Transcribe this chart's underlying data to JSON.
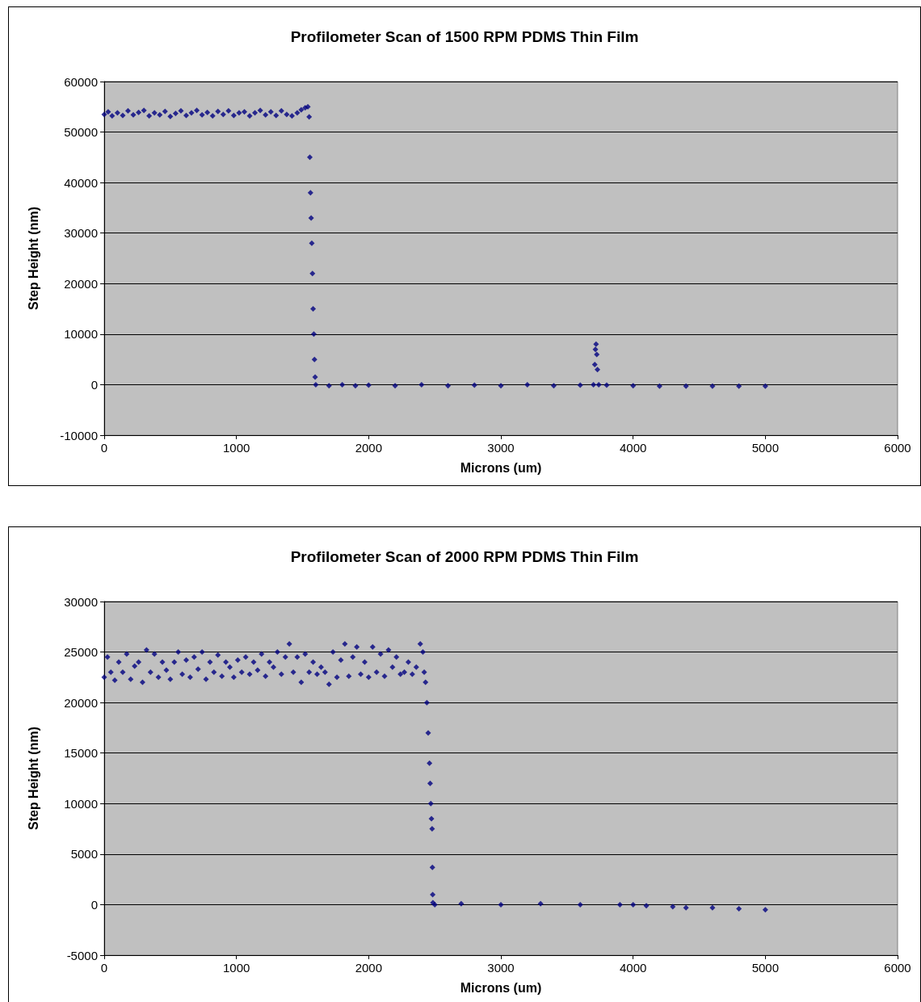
{
  "chart_data": [
    {
      "type": "scatter",
      "title": "Profilometer Scan of 1500 RPM PDMS Thin Film",
      "xlabel": "Microns (um)",
      "ylabel": "Step Height (nm)",
      "xlim": [
        0,
        6000
      ],
      "xticks": [
        0,
        1000,
        2000,
        3000,
        4000,
        5000,
        6000
      ],
      "ylim": [
        -10000,
        60000
      ],
      "yticks": [
        -10000,
        0,
        10000,
        20000,
        30000,
        40000,
        50000,
        60000
      ],
      "grid": "y",
      "marker": "diamond",
      "series": [
        {
          "color": "#000080",
          "x": [
            0,
            30,
            60,
            100,
            140,
            180,
            220,
            260,
            300,
            340,
            380,
            420,
            460,
            500,
            540,
            580,
            620,
            660,
            700,
            740,
            780,
            820,
            860,
            900,
            940,
            980,
            1020,
            1060,
            1100,
            1140,
            1180,
            1220,
            1260,
            1300,
            1340,
            1380,
            1420,
            1460,
            1490,
            1520,
            1540,
            1550,
            1555,
            1560,
            1565,
            1570,
            1575,
            1580,
            1585,
            1590,
            1595,
            1600,
            1700,
            1800,
            1900,
            2000,
            2200,
            2400,
            2600,
            2800,
            3000,
            3200,
            3400,
            3600,
            3700,
            3710,
            3715,
            3720,
            3725,
            3730,
            3740,
            3800,
            4000,
            4200,
            4400,
            4600,
            4800,
            5000
          ],
          "values": [
            53500,
            54000,
            53200,
            53800,
            53300,
            54200,
            53400,
            53900,
            54300,
            53200,
            53800,
            53400,
            54100,
            53100,
            53700,
            54200,
            53300,
            53800,
            54300,
            53400,
            53900,
            53200,
            54100,
            53500,
            54200,
            53300,
            53800,
            54000,
            53200,
            53800,
            54300,
            53400,
            54000,
            53300,
            54200,
            53500,
            53200,
            53800,
            54400,
            54800,
            55000,
            53000,
            45000,
            38000,
            33000,
            28000,
            22000,
            15000,
            10000,
            5000,
            1500,
            0,
            -200,
            0,
            -200,
            -100,
            -200,
            0,
            -200,
            -100,
            -200,
            0,
            -200,
            -100,
            0,
            4000,
            7000,
            8000,
            6000,
            3000,
            0,
            -100,
            -200,
            -300,
            -300,
            -300,
            -300,
            -300
          ]
        }
      ]
    },
    {
      "type": "scatter",
      "title": "Profilometer Scan of 2000 RPM PDMS Thin Film",
      "xlabel": "Microns (um)",
      "ylabel": "Step Height (nm)",
      "xlim": [
        0,
        6000
      ],
      "xticks": [
        0,
        1000,
        2000,
        3000,
        4000,
        5000,
        6000
      ],
      "ylim": [
        -5000,
        30000
      ],
      "yticks": [
        -5000,
        0,
        5000,
        10000,
        15000,
        20000,
        25000,
        30000
      ],
      "grid": "y",
      "marker": "diamond",
      "series": [
        {
          "color": "#000080",
          "x": [
            0,
            25,
            50,
            80,
            110,
            140,
            170,
            200,
            230,
            260,
            290,
            320,
            350,
            380,
            410,
            440,
            470,
            500,
            530,
            560,
            590,
            620,
            650,
            680,
            710,
            740,
            770,
            800,
            830,
            860,
            890,
            920,
            950,
            980,
            1010,
            1040,
            1070,
            1100,
            1130,
            1160,
            1190,
            1220,
            1250,
            1280,
            1310,
            1340,
            1370,
            1400,
            1430,
            1460,
            1490,
            1520,
            1550,
            1580,
            1610,
            1640,
            1670,
            1700,
            1730,
            1760,
            1790,
            1820,
            1850,
            1880,
            1910,
            1940,
            1970,
            2000,
            2030,
            2060,
            2090,
            2120,
            2150,
            2180,
            2210,
            2240,
            2270,
            2300,
            2330,
            2360,
            2390,
            2410,
            2420,
            2430,
            2440,
            2450,
            2460,
            2465,
            2470,
            2475,
            2480,
            2482,
            2484,
            2486,
            2500,
            2700,
            3000,
            3300,
            3600,
            3900,
            4000,
            4100,
            4300,
            4400,
            4600,
            4800,
            5000
          ],
          "values": [
            22500,
            24500,
            23000,
            22200,
            24000,
            23000,
            24800,
            22300,
            23600,
            24000,
            22000,
            25200,
            23000,
            24800,
            22500,
            24000,
            23200,
            22300,
            24000,
            25000,
            22800,
            24200,
            22500,
            24500,
            23300,
            25000,
            22300,
            24000,
            23000,
            24700,
            22600,
            24000,
            23500,
            22500,
            24200,
            23000,
            24500,
            22800,
            24000,
            23200,
            24800,
            22600,
            24000,
            23500,
            25000,
            22800,
            24500,
            25800,
            23000,
            24500,
            22000,
            24800,
            23000,
            24000,
            22800,
            23500,
            23000,
            21800,
            25000,
            22500,
            24200,
            25800,
            22600,
            24500,
            25500,
            22800,
            24000,
            22500,
            25500,
            23000,
            24800,
            22600,
            25200,
            23500,
            24500,
            22800,
            23000,
            24000,
            22800,
            23500,
            25800,
            25000,
            23000,
            22000,
            20000,
            17000,
            14000,
            12000,
            10000,
            8500,
            7500,
            3700,
            1000,
            200,
            0,
            100,
            0,
            100,
            0,
            0,
            0,
            -100,
            -200,
            -300,
            -300,
            -400,
            -500
          ]
        }
      ]
    }
  ]
}
